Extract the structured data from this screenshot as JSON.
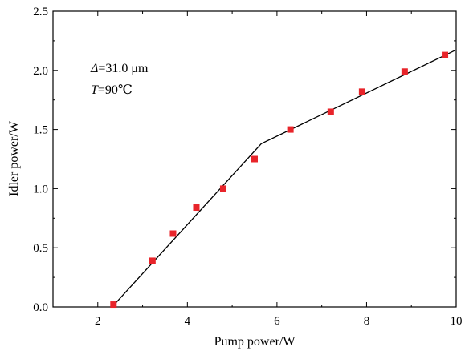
{
  "chart_data": {
    "type": "scatter",
    "xlabel": "Pump power/W",
    "ylabel": "Idler power/W",
    "xlim": [
      1,
      10
    ],
    "ylim": [
      0,
      2.5
    ],
    "x_ticks": [
      2,
      4,
      6,
      8,
      10
    ],
    "y_ticks": [
      0.0,
      0.5,
      1.0,
      1.5,
      2.0,
      2.5
    ],
    "x_tick_labels": [
      "2",
      "4",
      "6",
      "8",
      "10"
    ],
    "y_tick_labels": [
      "0.0",
      "0.5",
      "1.0",
      "1.5",
      "2.0",
      "2.5"
    ],
    "grid": false,
    "annotations": [
      {
        "italic": "Δ",
        "text": "=31.0 μm"
      },
      {
        "italic": "T",
        "text": "=90℃"
      }
    ],
    "series": [
      {
        "kind": "points",
        "marker": "square",
        "color": "#e8242a",
        "x": [
          2.35,
          3.22,
          3.68,
          4.2,
          4.8,
          5.5,
          6.3,
          7.2,
          7.9,
          8.85,
          9.75
        ],
        "y": [
          0.02,
          0.39,
          0.62,
          0.84,
          1.0,
          1.25,
          1.5,
          1.65,
          1.82,
          1.99,
          2.13
        ]
      },
      {
        "kind": "line",
        "color": "#000000",
        "x": [
          2.32,
          5.65,
          9.98
        ],
        "y": [
          0.0,
          1.38,
          2.17
        ]
      }
    ]
  }
}
